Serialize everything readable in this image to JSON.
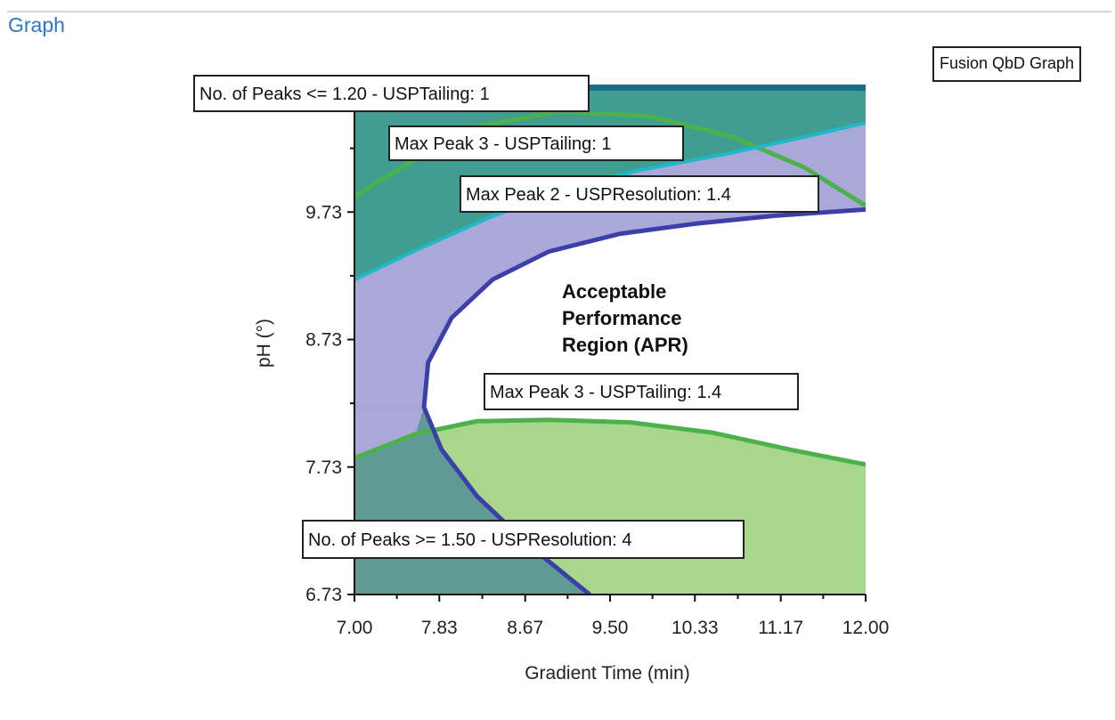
{
  "window": {
    "group_title": "Graph",
    "badge": "Fusion QbD Graph"
  },
  "colors": {
    "dark_teal": "#3f9e8f",
    "light_blue": "#74a9e0",
    "lavender": "#aaa8d8",
    "light_green": "#a8d68a",
    "slate_teal": "#5f9a94",
    "top_band": "#1a6d8a",
    "green_line": "#4cb04c",
    "cyan_line": "#20b8c8",
    "apr_line": "#3c3fa8"
  },
  "chart_data": {
    "type": "contour",
    "xlabel": "Gradient Time (min)",
    "ylabel": "pH (°)",
    "xlim": [
      7.0,
      12.0
    ],
    "ylim": [
      6.73,
      10.73
    ],
    "x_ticks": [
      "7.00",
      "7.83",
      "8.67",
      "9.50",
      "10.33",
      "11.17",
      "12.00"
    ],
    "y_ticks": [
      "6.73",
      "7.73",
      "8.73",
      "9.73"
    ],
    "apr_label": [
      "Acceptable",
      "Performance",
      "Region (APR)"
    ],
    "contours": [
      {
        "label": "No. of Peaks <= 1.20 - USPTailing: 1",
        "color": "green",
        "points": [
          [
            7.0,
            9.85
          ],
          [
            7.5,
            10.1
          ],
          [
            8.2,
            10.4
          ],
          [
            9.0,
            10.52
          ],
          [
            9.9,
            10.48
          ],
          [
            10.7,
            10.32
          ],
          [
            11.4,
            10.08
          ],
          [
            12.0,
            9.78
          ]
        ]
      },
      {
        "label": "Max Peak 3 - USPTailing: 1",
        "color": "cyan",
        "points": [
          [
            7.0,
            9.2
          ],
          [
            7.6,
            9.43
          ],
          [
            8.3,
            9.68
          ],
          [
            9.0,
            9.9
          ],
          [
            9.8,
            10.06
          ],
          [
            10.6,
            10.18
          ],
          [
            11.3,
            10.3
          ],
          [
            12.0,
            10.43
          ]
        ]
      },
      {
        "label": "Max Peak 2 - USPResolution: 1.4",
        "color": "apr",
        "points": [
          [
            9.3,
            6.73
          ],
          [
            8.7,
            7.12
          ],
          [
            8.2,
            7.5
          ],
          [
            7.85,
            7.87
          ],
          [
            7.68,
            8.2
          ],
          [
            7.72,
            8.55
          ],
          [
            7.95,
            8.9
          ],
          [
            8.35,
            9.2
          ],
          [
            8.9,
            9.42
          ],
          [
            9.6,
            9.56
          ],
          [
            10.35,
            9.64
          ],
          [
            11.1,
            9.7
          ],
          [
            12.0,
            9.75
          ]
        ]
      },
      {
        "label": "Max Peak 3 - USPTailing: 1.4",
        "color": "green",
        "points": [
          [
            7.0,
            7.8
          ],
          [
            7.6,
            7.99
          ],
          [
            8.2,
            8.09
          ],
          [
            8.9,
            8.1
          ],
          [
            9.7,
            8.08
          ],
          [
            10.5,
            8.0
          ],
          [
            11.3,
            7.86
          ],
          [
            12.0,
            7.75
          ]
        ]
      },
      {
        "label": "No. of Peaks >= 1.50 - USPResolution: 4",
        "color": "apr",
        "points": []
      }
    ]
  }
}
